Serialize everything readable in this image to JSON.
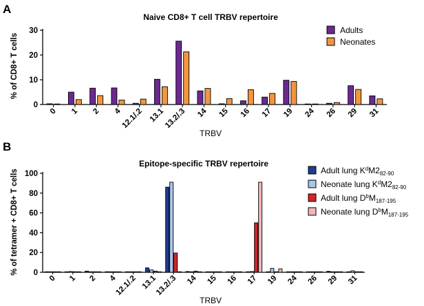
{
  "chart_data": [
    {
      "panel": "A",
      "type": "bar",
      "title": "Naive CD8+ T  cell TRBV repertoire",
      "xlabel": "TRBV",
      "ylabel": "% of CD8+ T cells",
      "ylim": [
        0,
        30
      ],
      "yticks": [
        0,
        10,
        20,
        30
      ],
      "categories": [
        "0",
        "1",
        "2",
        "4",
        "12.1/.2",
        "13.1",
        "13.2/.3",
        "14",
        "15",
        "16",
        "17",
        "19",
        "24",
        "26",
        "29",
        "31"
      ],
      "legend_position": "top-right",
      "series": [
        {
          "name": "Adults",
          "color": "#6b2a8f",
          "values": [
            0.3,
            5.0,
            6.6,
            6.7,
            0.5,
            10.2,
            25.6,
            5.5,
            0.3,
            1.5,
            3.0,
            9.8,
            0.2,
            0.5,
            7.6,
            3.5
          ]
        },
        {
          "name": "Neonates",
          "color": "#f29540",
          "values": [
            0.2,
            2.0,
            3.6,
            1.8,
            2.2,
            7.2,
            21.3,
            6.5,
            2.4,
            6.0,
            4.5,
            9.3,
            0.2,
            0.8,
            6.1,
            2.3
          ]
        }
      ]
    },
    {
      "panel": "B",
      "type": "bar",
      "title": "Epitope-specific TRBV repertoire",
      "xlabel": "TRBV",
      "ylabel": "% of tetramer + CD8+ T cells",
      "ylim": [
        0,
        100
      ],
      "yticks": [
        0,
        20,
        40,
        60,
        80,
        100
      ],
      "categories": [
        "0",
        "1",
        "2",
        "4",
        "12.1/.2",
        "13.1",
        "13.2/.3",
        "14",
        "15",
        "16",
        "17",
        "19",
        "24",
        "26",
        "29",
        "31"
      ],
      "legend_position": "top-right",
      "series": [
        {
          "name": "Adult lung KdM2 82-90",
          "label_main1": "Adult lung K",
          "label_sup": "d",
          "label_main2": "M2",
          "label_sub": "82-90",
          "color": "#1f3d8f",
          "values": [
            0,
            0.3,
            1.2,
            0.6,
            0.3,
            4.5,
            86,
            0.8,
            0.4,
            0,
            0.5,
            0,
            0,
            0.5,
            1.0,
            0
          ]
        },
        {
          "name": "Neonate lung KdM2 82-90",
          "label_main1": "Neonate lung K",
          "label_sup": "d",
          "label_main2": "M2",
          "label_sub": "82-90",
          "color": "#aac5e6",
          "values": [
            0,
            0.8,
            0.3,
            0.4,
            0.5,
            2.5,
            91,
            0.5,
            0.3,
            0.2,
            0.8,
            4.0,
            0.3,
            0.3,
            0.4,
            1.5
          ]
        },
        {
          "name": "Adult lung DbM 187-195",
          "label_main1": "Adult lung D",
          "label_sup": "b",
          "label_main2": "M",
          "label_sub": "187-195",
          "color": "#d6232a",
          "values": [
            0,
            0,
            0,
            0,
            0,
            1.2,
            19.5,
            1.2,
            0,
            0,
            50,
            0,
            0,
            0,
            0,
            0
          ]
        },
        {
          "name": "Neonate lung DbM 187-195",
          "label_main1": "Neonate lung D",
          "label_sup": "b",
          "label_main2": "M",
          "label_sub": "187-195",
          "color": "#f2b6b8",
          "values": [
            0,
            0,
            0,
            0,
            0,
            0,
            0,
            0,
            0,
            0,
            91,
            3.5,
            0,
            0,
            0,
            0
          ]
        }
      ]
    }
  ]
}
